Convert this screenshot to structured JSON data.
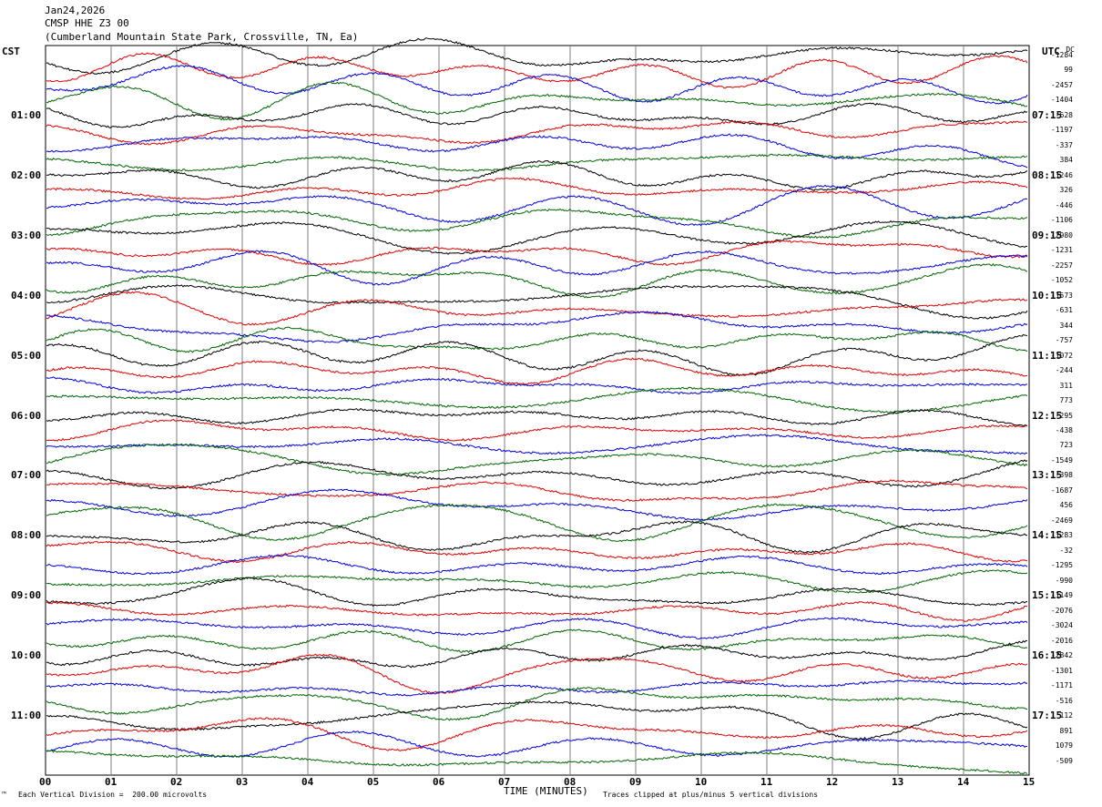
{
  "header": {
    "date": "Jan24,2026",
    "station": "CMSP HHE Z3 00",
    "location": "(Cumberland Mountain State Park, Crossville, TN, Ea)"
  },
  "left_tz": "CST",
  "right_tz": "UTC",
  "dc_label": "DC",
  "footer": {
    "mark": "™",
    "scale_note": "Each Vertical Division =  200.00 microvolts",
    "xlabel": "TIME (MINUTES)",
    "clip_note": "Traces clipped at plus/minus 5 vertical divisions"
  },
  "colors": {
    "black": "#000000",
    "red": "#dd0000",
    "blue": "#0000dd",
    "green": "#006600",
    "grid": "#808080"
  },
  "chart_data": {
    "type": "line",
    "title": "",
    "xlabel": "TIME (MINUTES)",
    "xlim": [
      0,
      15
    ],
    "x_ticks": [
      "00",
      "01",
      "02",
      "03",
      "04",
      "05",
      "06",
      "07",
      "08",
      "09",
      "10",
      "11",
      "12",
      "13",
      "14",
      "15"
    ],
    "grid": true,
    "trace_color_cycle": [
      "black",
      "red",
      "blue",
      "green"
    ],
    "traces_per_hour": 4,
    "left_time_labels": [
      "01:00",
      "02:00",
      "03:00",
      "04:00",
      "05:00",
      "06:00",
      "07:00",
      "08:00",
      "09:00",
      "10:00",
      "11:00"
    ],
    "right_time_labels": [
      "07:15",
      "08:15",
      "09:15",
      "10:15",
      "11:15",
      "12:15",
      "13:15",
      "14:15",
      "15:15",
      "16:15",
      "17:15"
    ],
    "dc_offsets": [
      "-1284",
      "99",
      "-2457",
      "-1404",
      "-628",
      "-1197",
      "-337",
      "384",
      "1246",
      "326",
      "-446",
      "-1106",
      "-2980",
      "-1231",
      "-2257",
      "-1052",
      "-1573",
      "-631",
      "344",
      "-757",
      "-1072",
      "-244",
      "311",
      "773",
      "-295",
      "-438",
      "723",
      "-1549",
      "-398",
      "-1687",
      "456",
      "-2469",
      "-1283",
      "-32",
      "-1295",
      "-990",
      "-1149",
      "-2076",
      "-3024",
      "-2016",
      "-2842",
      "-1301",
      "-1171",
      "-516",
      "112",
      "891",
      "1079",
      "-509"
    ]
  }
}
